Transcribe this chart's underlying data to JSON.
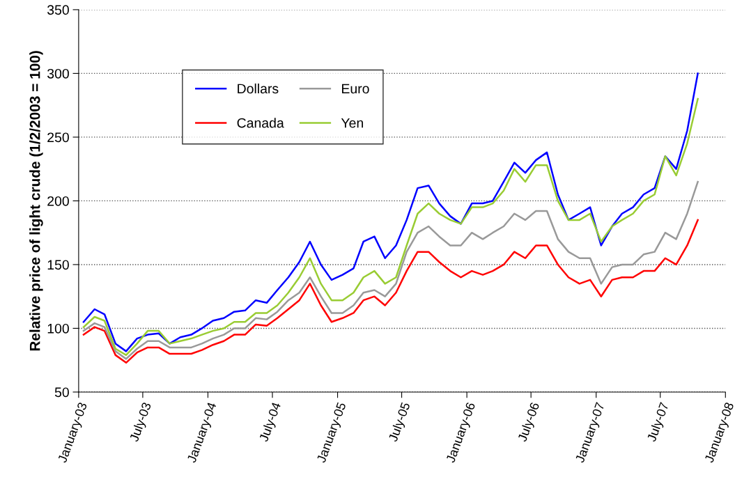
{
  "chart_data": {
    "type": "line",
    "ylabel": "Relative price of light crude (1/2/2003 = 100)",
    "x": [
      "2003-01-15",
      "2003-02-15",
      "2003-03-15",
      "2003-04-15",
      "2003-05-15",
      "2003-06-15",
      "2003-07-15",
      "2003-08-15",
      "2003-09-15",
      "2003-10-15",
      "2003-11-15",
      "2003-12-15",
      "2004-01-15",
      "2004-02-15",
      "2004-03-15",
      "2004-04-15",
      "2004-05-15",
      "2004-06-15",
      "2004-07-15",
      "2004-08-15",
      "2004-09-15",
      "2004-10-15",
      "2004-11-15",
      "2004-12-15",
      "2005-01-15",
      "2005-02-15",
      "2005-03-15",
      "2005-04-15",
      "2005-05-15",
      "2005-06-15",
      "2005-07-15",
      "2005-08-15",
      "2005-09-15",
      "2005-10-15",
      "2005-11-15",
      "2005-12-15",
      "2006-01-15",
      "2006-02-15",
      "2006-03-15",
      "2006-04-15",
      "2006-05-15",
      "2006-06-15",
      "2006-07-15",
      "2006-08-15",
      "2006-09-15",
      "2006-10-15",
      "2006-11-15",
      "2006-12-15",
      "2007-01-15",
      "2007-02-15",
      "2007-03-15",
      "2007-04-15",
      "2007-05-15",
      "2007-06-15",
      "2007-07-15",
      "2007-08-15",
      "2007-09-15",
      "2007-10-15"
    ],
    "series": [
      {
        "name": "Dollars",
        "color": "#0000ff",
        "values": [
          105,
          115,
          111,
          88,
          82,
          92,
          95,
          96,
          88,
          93,
          95,
          100,
          106,
          108,
          113,
          114,
          122,
          120,
          130,
          140,
          152,
          168,
          150,
          138,
          142,
          147,
          168,
          172,
          155,
          165,
          185,
          210,
          212,
          198,
          188,
          182,
          198,
          198,
          200,
          215,
          230,
          222,
          232,
          238,
          205,
          185,
          190,
          195,
          165,
          180,
          190,
          195,
          205,
          210,
          235,
          225,
          255,
          300
        ]
      },
      {
        "name": "Canada",
        "color": "#ff0000",
        "values": [
          95,
          101,
          98,
          79,
          73,
          81,
          85,
          85,
          80,
          80,
          80,
          83,
          87,
          90,
          95,
          95,
          103,
          102,
          108,
          115,
          122,
          135,
          118,
          105,
          108,
          112,
          122,
          125,
          118,
          128,
          145,
          160,
          160,
          152,
          145,
          140,
          145,
          142,
          145,
          150,
          160,
          155,
          165,
          165,
          150,
          140,
          135,
          138,
          125,
          138,
          140,
          140,
          145,
          145,
          155,
          150,
          165,
          185
        ]
      },
      {
        "name": "Euro",
        "color": "#999999",
        "values": [
          98,
          104,
          101,
          82,
          76,
          84,
          90,
          90,
          85,
          85,
          85,
          88,
          92,
          95,
          100,
          100,
          108,
          107,
          113,
          122,
          128,
          140,
          125,
          112,
          112,
          118,
          128,
          130,
          125,
          135,
          160,
          175,
          180,
          172,
          165,
          165,
          175,
          170,
          175,
          180,
          190,
          185,
          192,
          192,
          170,
          160,
          155,
          155,
          135,
          148,
          150,
          150,
          158,
          160,
          175,
          170,
          190,
          215
        ]
      },
      {
        "name": "Yen",
        "color": "#99cc33",
        "values": [
          101,
          109,
          106,
          84,
          79,
          88,
          98,
          98,
          88,
          90,
          92,
          95,
          98,
          100,
          105,
          105,
          112,
          112,
          118,
          128,
          140,
          155,
          135,
          122,
          122,
          128,
          140,
          145,
          135,
          140,
          165,
          190,
          198,
          190,
          185,
          182,
          195,
          195,
          198,
          208,
          225,
          215,
          228,
          228,
          200,
          185,
          185,
          190,
          168,
          180,
          185,
          190,
          200,
          205,
          235,
          220,
          245,
          280
        ]
      }
    ],
    "xlim": [
      "2003-01-01",
      "2008-01-01"
    ],
    "xticks": [
      {
        "value": "2003-01-01",
        "label": "January-03"
      },
      {
        "value": "2003-07-01",
        "label": "July-03"
      },
      {
        "value": "2004-01-01",
        "label": "January-04"
      },
      {
        "value": "2004-07-01",
        "label": "July-04"
      },
      {
        "value": "2005-01-01",
        "label": "January-05"
      },
      {
        "value": "2005-07-01",
        "label": "July-05"
      },
      {
        "value": "2006-01-01",
        "label": "January-06"
      },
      {
        "value": "2006-07-01",
        "label": "July-06"
      },
      {
        "value": "2007-01-01",
        "label": "January-07"
      },
      {
        "value": "2007-07-01",
        "label": "July-07"
      },
      {
        "value": "2008-01-01",
        "label": "January-08"
      }
    ],
    "ylim": [
      50,
      350
    ],
    "yticks": [
      50,
      100,
      150,
      200,
      250,
      300,
      350
    ],
    "grid": "y",
    "legend": "top left",
    "marker": "none",
    "line_style": "solid"
  }
}
